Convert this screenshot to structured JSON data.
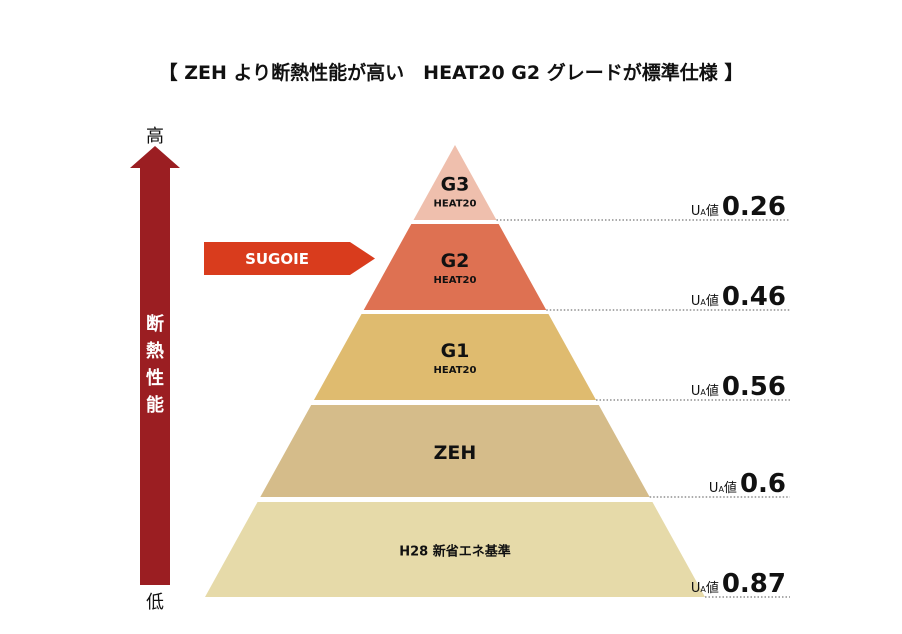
{
  "title": "【 ZEH より断熱性能が高い　HEAT20  G2 グレードが標準仕様 】",
  "axis": {
    "high": "高",
    "low": "低",
    "label": [
      "断",
      "熱",
      "性",
      "能"
    ]
  },
  "marker": {
    "label": "SUGOIE"
  },
  "ua_label": {
    "main": "U",
    "sub": "A",
    "unit": "値"
  },
  "levels": [
    {
      "name": "G3",
      "sub": "HEAT20",
      "ua": 0.26,
      "color": "#efbfad"
    },
    {
      "name": "G2",
      "sub": "HEAT20",
      "ua": 0.46,
      "color": "#de7152"
    },
    {
      "name": "G1",
      "sub": "HEAT20",
      "ua": 0.56,
      "color": "#dfbb6f"
    },
    {
      "name": "ZEH",
      "ua": 0.6,
      "color": "#d5bc8a"
    },
    {
      "name": "H28 新省エネ基準",
      "ua": 0.87,
      "color": "#e6daa9"
    }
  ]
}
